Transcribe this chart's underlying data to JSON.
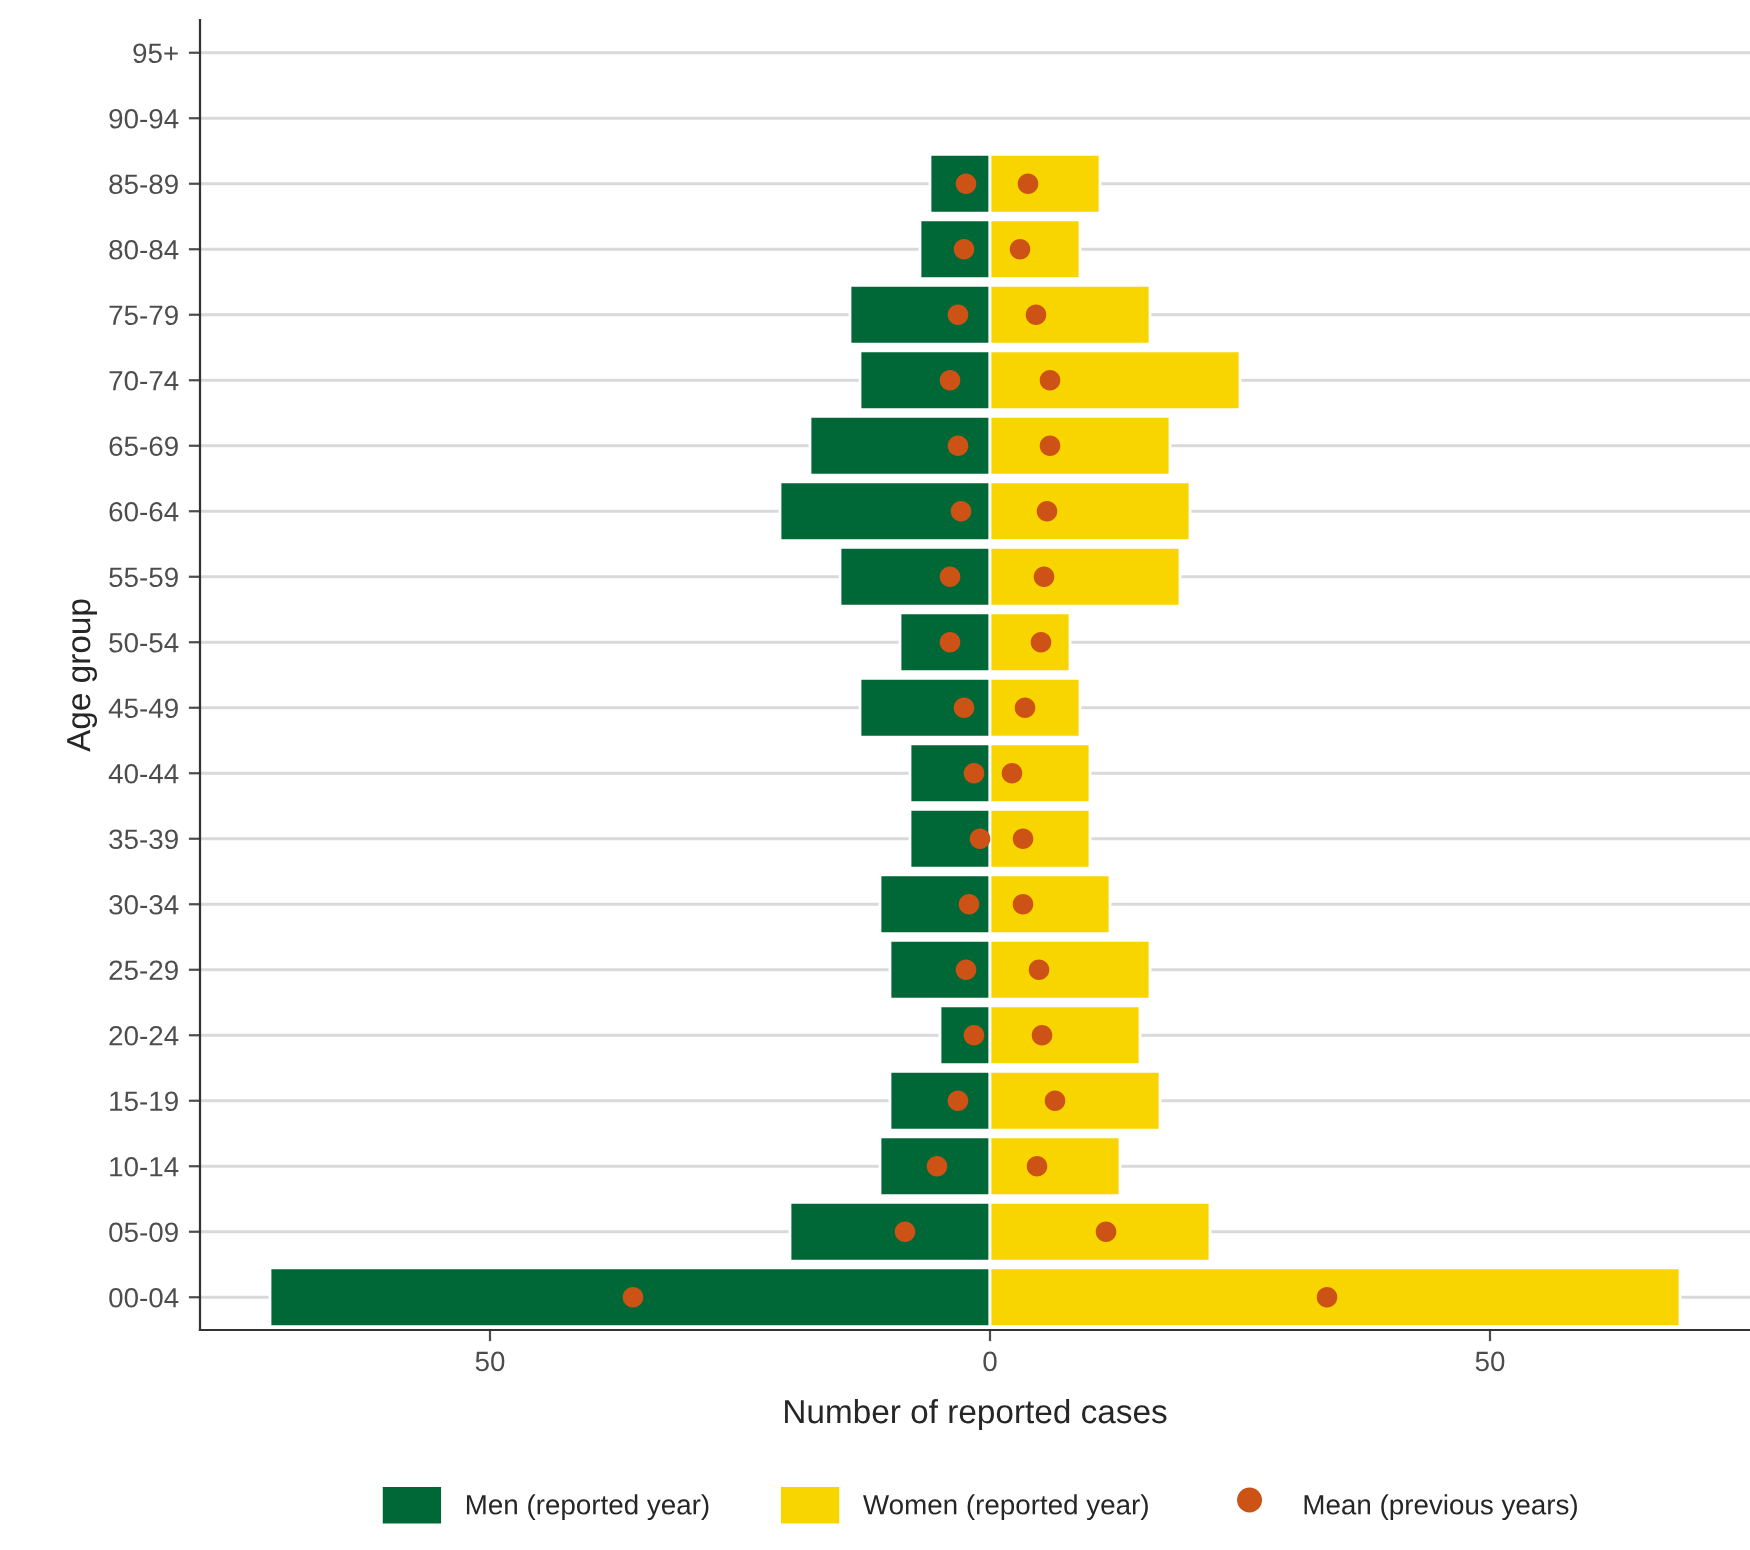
{
  "chart_data": {
    "type": "bar",
    "orientation": "horizontal",
    "stacked": true,
    "xlabel": "Number of reported cases",
    "ylabel": "Age group",
    "categories": [
      "95+",
      "90-94",
      "85-89",
      "80-84",
      "75-79",
      "70-74",
      "65-69",
      "60-64",
      "55-59",
      "50-54",
      "45-49",
      "40-44",
      "35-39",
      "30-34",
      "25-29",
      "20-24",
      "15-19",
      "10-14",
      "05-09",
      "00-04"
    ],
    "series": [
      {
        "name": "Men (reported year)",
        "color": "#006837",
        "values": [
          null,
          null,
          -6,
          -7,
          -14,
          -13,
          -18,
          -21,
          -15,
          -9,
          -13,
          -8,
          -8,
          -11,
          -10,
          -5,
          -10,
          -11,
          -20,
          -72
        ]
      },
      {
        "name": "Women (reported year)",
        "color": "#f9d500",
        "values": [
          null,
          null,
          11,
          9,
          16,
          25,
          18,
          20,
          19,
          8,
          9,
          10,
          10,
          12,
          16,
          15,
          17,
          13,
          22,
          69
        ]
      },
      {
        "name": "Mean (previous years)",
        "type": "scatter",
        "color": "#cc5216",
        "marker": "circle",
        "values": [
          null,
          null,
          -2.4,
          -2.6,
          -3.2,
          -4.0,
          -3.2,
          -2.9,
          -4.0,
          -4.0,
          -2.6,
          -1.6,
          -1.0,
          -2.1,
          -2.4,
          -1.6,
          -3.2,
          -5.3,
          -8.5,
          -35.7
        ]
      },
      {
        "type": "scatter",
        "color": "#cc5216",
        "marker": "circle",
        "values": [
          null,
          null,
          3.8,
          3.0,
          4.6,
          6.0,
          6.0,
          5.7,
          5.4,
          5.1,
          3.5,
          2.2,
          3.3,
          3.3,
          4.9,
          5.2,
          6.5,
          4.7,
          11.6,
          33.7
        ]
      }
    ],
    "xlim": [
      -79,
      76
    ],
    "xticks": [
      {
        "value": -50,
        "label": "50"
      },
      0,
      50
    ],
    "grid": "y",
    "legend": "bottom"
  }
}
